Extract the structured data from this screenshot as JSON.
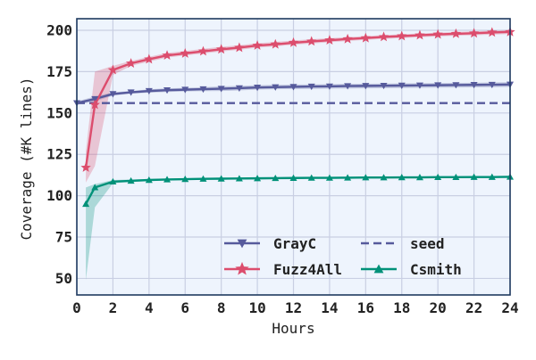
{
  "chart_data": {
    "type": "line",
    "xlabel": "Hours",
    "ylabel": "Coverage (#K lines)",
    "xlim": [
      0,
      24
    ],
    "ylim": [
      40,
      207
    ],
    "xticks": [
      0,
      2,
      4,
      6,
      8,
      10,
      12,
      14,
      16,
      18,
      20,
      22,
      24
    ],
    "yticks": [
      50,
      75,
      100,
      125,
      150,
      175,
      200
    ],
    "grid": true,
    "legend_position": "bottom-right",
    "colors": {
      "plot_background": "#eef4fd",
      "grid": "#c9cfe3",
      "frame": "#1f3a5f"
    },
    "series": [
      {
        "name": "GrayC",
        "color": "#565a9c",
        "marker": "triangle-down",
        "line_style": "solid",
        "x": [
          0,
          1,
          2,
          3,
          4,
          5,
          6,
          7,
          8,
          9,
          10,
          11,
          12,
          13,
          14,
          15,
          16,
          17,
          18,
          19,
          20,
          21,
          22,
          23,
          24
        ],
        "y": [
          156,
          158.5,
          161.5,
          162.5,
          163.3,
          163.8,
          164.1,
          164.4,
          164.7,
          165,
          165.4,
          165.6,
          165.8,
          166,
          166.1,
          166.3,
          166.4,
          166.5,
          166.6,
          166.7,
          166.8,
          166.9,
          167,
          167.1,
          167.2
        ],
        "band_low": [
          155,
          157,
          160.5,
          161.7,
          162.3,
          162.7,
          163,
          163.2,
          163.3,
          163.6,
          164.2,
          164.4,
          164.5,
          164.6,
          164.7,
          164.8,
          164.9,
          165,
          165.1,
          165.2,
          165.3,
          165.4,
          165.5,
          165.6,
          165.8
        ],
        "band_high": [
          157,
          160,
          162.5,
          163.3,
          164.3,
          164.9,
          165.2,
          165.6,
          166.1,
          166.4,
          166.8,
          167,
          167.2,
          167.3,
          167.4,
          167.6,
          167.7,
          167.8,
          167.9,
          168,
          168.1,
          168.2,
          168.3,
          168.5,
          168.6
        ]
      },
      {
        "name": "seed",
        "color": "#565a9c",
        "marker": "none",
        "line_style": "dashed",
        "x": [
          0,
          24
        ],
        "y": [
          156,
          156
        ]
      },
      {
        "name": "Fuzz4All",
        "color": "#dc4d6d",
        "marker": "star",
        "line_style": "solid",
        "x": [
          0.5,
          1,
          2,
          3,
          4,
          5,
          6,
          7,
          8,
          9,
          10,
          11,
          12,
          13,
          14,
          15,
          16,
          17,
          18,
          19,
          20,
          21,
          22,
          23,
          24
        ],
        "y": [
          117,
          155,
          176,
          180,
          182.5,
          184.8,
          186,
          187.3,
          188.5,
          189.5,
          190.8,
          191.5,
          192.5,
          193.3,
          194,
          194.7,
          195.3,
          196,
          196.5,
          197,
          197.5,
          197.9,
          198.2,
          198.7,
          199
        ],
        "band_low": [
          108,
          118,
          173,
          178.5,
          181,
          183.5,
          184.8,
          186,
          187.2,
          188.2,
          189.5,
          190.3,
          191.3,
          192,
          192.8,
          193.5,
          194.2,
          194.8,
          195.3,
          195.8,
          196.3,
          196.7,
          197,
          197.4,
          197.8
        ],
        "band_high": [
          127,
          175,
          178.5,
          181.5,
          184,
          186.3,
          187.5,
          188.8,
          190,
          191,
          192.2,
          193,
          193.8,
          194.6,
          195.2,
          195.9,
          196.5,
          197.1,
          197.6,
          198.1,
          198.6,
          199,
          199.4,
          199.8,
          200.2
        ]
      },
      {
        "name": "Csmith",
        "color": "#009179",
        "marker": "triangle-up",
        "line_style": "solid",
        "x": [
          0.5,
          1,
          2,
          3,
          4,
          5,
          6,
          7,
          8,
          9,
          10,
          11,
          12,
          13,
          14,
          15,
          16,
          17,
          18,
          19,
          20,
          21,
          22,
          23,
          24
        ],
        "y": [
          95,
          105,
          108.5,
          109,
          109.5,
          109.8,
          110,
          110.2,
          110.3,
          110.4,
          110.5,
          110.6,
          110.7,
          110.8,
          110.8,
          110.9,
          111,
          111,
          111.1,
          111.1,
          111.2,
          111.2,
          111.3,
          111.3,
          111.4
        ],
        "band_low": [
          49,
          93,
          107.5,
          108.3,
          108.9,
          109.2,
          109.4,
          109.6,
          109.7,
          109.8,
          109.9,
          110,
          110.1,
          110.2,
          110.2,
          110.3,
          110.4,
          110.4,
          110.5,
          110.5,
          110.6,
          110.6,
          110.7,
          110.7,
          110.8
        ],
        "band_high": [
          105,
          107,
          109.5,
          109.8,
          110.1,
          110.4,
          110.6,
          110.8,
          110.9,
          111,
          111.1,
          111.2,
          111.3,
          111.4,
          111.4,
          111.5,
          111.6,
          111.6,
          111.7,
          111.7,
          111.8,
          111.8,
          111.9,
          111.9,
          112
        ]
      }
    ],
    "legend": [
      {
        "label": "GrayC",
        "series": 0
      },
      {
        "label": "Fuzz4All",
        "series": 2
      },
      {
        "label": "seed",
        "series": 1
      },
      {
        "label": "Csmith",
        "series": 3
      }
    ]
  }
}
